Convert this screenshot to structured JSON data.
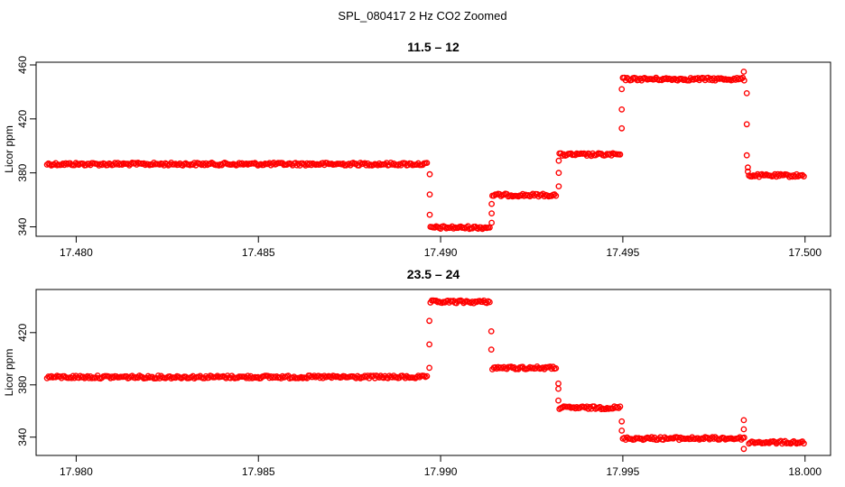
{
  "figure": {
    "title": "SPL_080417  2 Hz CO2 Zoomed",
    "marker_color": "#ff0000"
  },
  "chart_data": [
    {
      "type": "scatter",
      "title": "11.5 – 12",
      "xlabel": "",
      "ylabel": "Licor ppm",
      "xlim": [
        17.4789,
        17.5007
      ],
      "ylim": [
        333,
        462
      ],
      "xticks": [
        17.48,
        17.485,
        17.49,
        17.495,
        17.5
      ],
      "xtick_labels": [
        "17.480",
        "17.485",
        "17.490",
        "17.495",
        "17.500"
      ],
      "yticks": [
        340,
        380,
        420,
        460
      ],
      "ytick_labels": [
        "340",
        "380",
        "420",
        "460"
      ],
      "marker": "open-circle",
      "color": "#ff0000",
      "segments": [
        {
          "x0": 17.4792,
          "x1": 17.48966,
          "y": 386.5
        },
        {
          "x0": 17.48972,
          "x1": 17.49136,
          "y": 339.5
        },
        {
          "x0": 17.49142,
          "x1": 17.4932,
          "y": 363.5
        },
        {
          "x0": 17.49326,
          "x1": 17.49494,
          "y": 393.5
        },
        {
          "x0": 17.495,
          "x1": 17.49834,
          "y": 449.5
        },
        {
          "x0": 17.49846,
          "x1": 17.49998,
          "y": 378
        }
      ],
      "transitions": [
        {
          "x": 17.4897,
          "values": [
            379,
            364,
            349
          ]
        },
        {
          "x": 17.4914,
          "values": [
            343,
            350,
            357
          ]
        },
        {
          "x": 17.49324,
          "values": [
            370,
            380,
            389
          ]
        },
        {
          "x": 17.49497,
          "values": [
            413,
            427,
            442
          ]
        },
        {
          "x": 17.49832,
          "values": [
            455
          ]
        },
        {
          "x": 17.4984,
          "values": [
            439,
            416,
            393
          ]
        },
        {
          "x": 17.49843,
          "values": [
            384,
            381
          ]
        }
      ]
    },
    {
      "type": "scatter",
      "title": "23.5 – 24",
      "xlabel": "",
      "ylabel": "Licor ppm",
      "xlim": [
        17.9789,
        18.0007
      ],
      "ylim": [
        326,
        453
      ],
      "xticks": [
        17.98,
        17.985,
        17.99,
        17.995,
        18.0
      ],
      "xtick_labels": [
        "17.980",
        "17.985",
        "17.990",
        "17.995",
        "18.000"
      ],
      "yticks": [
        340,
        380,
        420
      ],
      "ytick_labels": [
        "340",
        "380",
        "420"
      ],
      "marker": "open-circle",
      "color": "#ff0000",
      "segments": [
        {
          "x0": 17.9792,
          "x1": 17.98966,
          "y": 386
        },
        {
          "x0": 17.98972,
          "x1": 17.99136,
          "y": 443.5
        },
        {
          "x0": 17.99142,
          "x1": 17.9932,
          "y": 393
        },
        {
          "x0": 17.99326,
          "x1": 17.99494,
          "y": 362.5
        },
        {
          "x0": 17.995,
          "x1": 17.99834,
          "y": 339
        },
        {
          "x0": 17.99846,
          "x1": 17.99998,
          "y": 336
        }
      ],
      "transitions": [
        {
          "x": 17.98969,
          "values": [
            393,
            411,
            429
          ]
        },
        {
          "x": 17.99139,
          "values": [
            421,
            407
          ]
        },
        {
          "x": 17.99323,
          "values": [
            381,
            377,
            368
          ]
        },
        {
          "x": 17.99497,
          "values": [
            352,
            345
          ]
        },
        {
          "x": 17.99832,
          "values": [
            353,
            346,
            331
          ]
        }
      ]
    }
  ]
}
